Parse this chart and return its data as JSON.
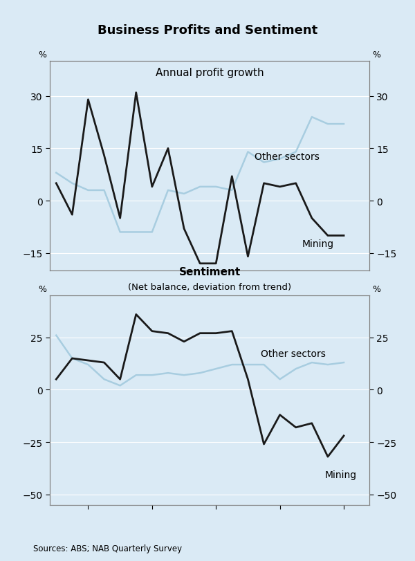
{
  "title": "Business Profits and Sentiment",
  "background_color": "#daeaf5",
  "panel1_title": "Annual profit growth",
  "source": "Sources: ABS; NAB Quarterly Survey",
  "profit_x": [
    1994.5,
    1994.75,
    1995.0,
    1995.25,
    1995.5,
    1995.75,
    1996.0,
    1996.25,
    1996.5,
    1996.75,
    1997.0,
    1997.25,
    1997.5,
    1997.75,
    1998.0,
    1998.25,
    1998.5,
    1998.75,
    1999.0
  ],
  "profit_mining": [
    5,
    -4,
    29,
    13,
    -5,
    31,
    4,
    15,
    -8,
    -18,
    -18,
    7,
    -16,
    5,
    4,
    5,
    -5,
    -10,
    -10
  ],
  "profit_other": [
    8,
    5,
    3,
    3,
    -9,
    -9,
    -9,
    3,
    2,
    4,
    4,
    3,
    14,
    11,
    12,
    14,
    24,
    22,
    22
  ],
  "sentiment_x": [
    1994.5,
    1994.75,
    1995.0,
    1995.25,
    1995.5,
    1995.75,
    1996.0,
    1996.25,
    1996.5,
    1996.75,
    1997.0,
    1997.25,
    1997.5,
    1997.75,
    1998.0,
    1998.25,
    1998.5,
    1998.75,
    1999.0
  ],
  "sentiment_mining": [
    5,
    15,
    14,
    13,
    5,
    36,
    28,
    27,
    23,
    27,
    27,
    28,
    5,
    -26,
    -12,
    -18,
    -16,
    -32,
    -22
  ],
  "sentiment_other": [
    26,
    15,
    12,
    5,
    2,
    7,
    7,
    8,
    7,
    8,
    10,
    12,
    12,
    12,
    5,
    10,
    13,
    12,
    13
  ],
  "panel1_ylim": [
    -20,
    40
  ],
  "panel1_yticks": [
    -15,
    0,
    15,
    30
  ],
  "panel2_ylim": [
    -55,
    45
  ],
  "panel2_yticks": [
    -50,
    -25,
    0,
    25
  ],
  "mining_color": "#1a1a1a",
  "other_color": "#a8cde0",
  "mining_linewidth": 2.0,
  "other_linewidth": 1.8,
  "xlim": [
    1994.4,
    1999.4
  ],
  "xticks": [
    1995,
    1996,
    1997,
    1998,
    1999
  ],
  "spine_color": "#808080",
  "grid_color": "#ffffff",
  "annotation_fontsize": 10
}
